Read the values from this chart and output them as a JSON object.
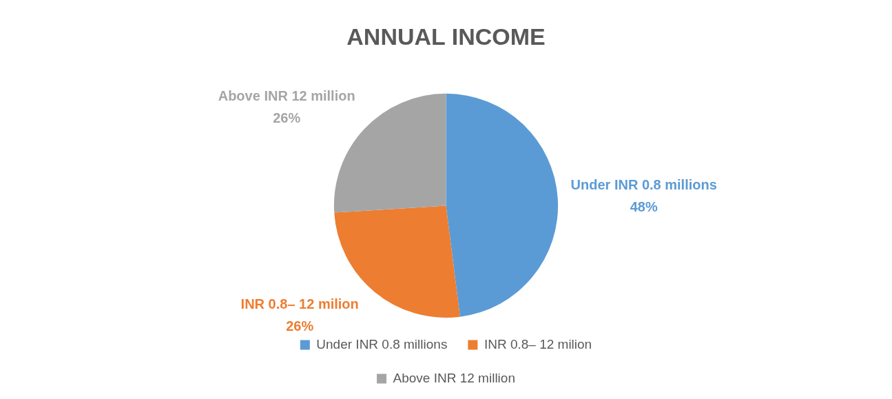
{
  "chart_data": {
    "type": "pie",
    "title": "ANNUAL INCOME",
    "categories": [
      "Under INR 0.8 millions",
      "INR 0.8– 12 milion",
      "Above INR 12 million"
    ],
    "values": [
      48,
      26,
      26
    ],
    "colors": [
      "#5b9bd5",
      "#ed7d31",
      "#a5a5a5"
    ],
    "value_labels": [
      "48%",
      "26%",
      "26%"
    ],
    "legend": "bottom"
  }
}
